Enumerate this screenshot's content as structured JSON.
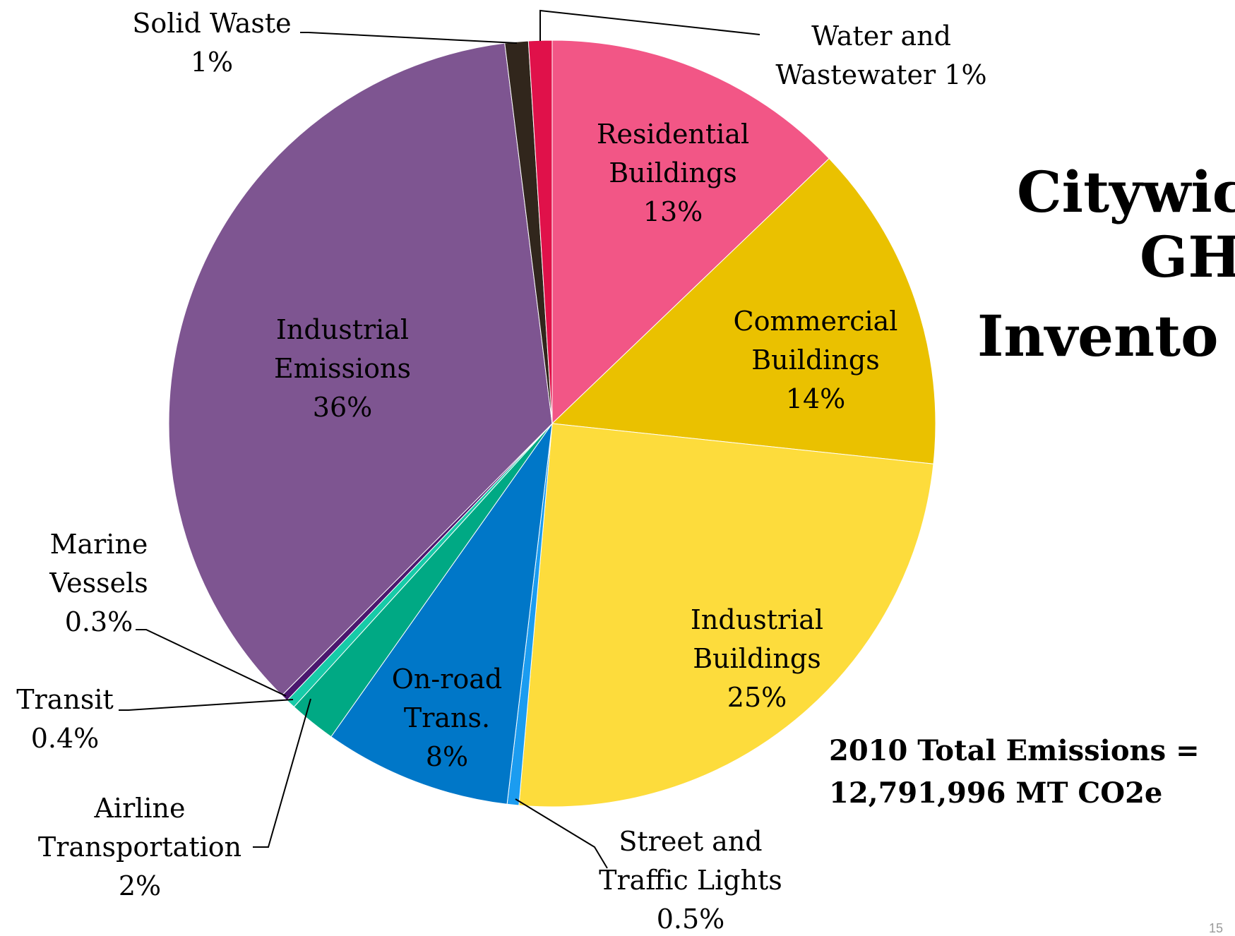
{
  "chart_data": {
    "type": "pie",
    "title_lines": [
      "Citywic",
      "GH",
      "Invento"
    ],
    "subtitle_lines": [
      "2010 Total Emissions =",
      "12,791,996 MT CO2e"
    ],
    "slices": [
      {
        "label_lines": [
          "Residential",
          "Buildings",
          "13%"
        ],
        "value": 13,
        "color": "#f25686"
      },
      {
        "label_lines": [
          "Commercial",
          "Buildings",
          "14%"
        ],
        "value": 14,
        "color": "#eac100"
      },
      {
        "label_lines": [
          "Industrial",
          "Buildings",
          "25%"
        ],
        "value": 25,
        "color": "#fddc3c"
      },
      {
        "label_lines": [
          "Street and",
          "Traffic Lights",
          "0.5%"
        ],
        "value": 0.5,
        "color": "#1b9cf0"
      },
      {
        "label_lines": [
          "On-road",
          "Trans.",
          "8%"
        ],
        "value": 8,
        "color": "#0077c8"
      },
      {
        "label_lines": [
          "Airline",
          "Transportation",
          "2%"
        ],
        "value": 2,
        "color": "#00a984"
      },
      {
        "label_lines": [
          "Transit",
          "0.4%"
        ],
        "value": 0.4,
        "color": "#17cba8"
      },
      {
        "label_lines": [
          "Marine",
          "Vessels",
          "0.3%"
        ],
        "value": 0.3,
        "color": "#4b176e"
      },
      {
        "label_lines": [
          "Industrial",
          "Emissions",
          "36%"
        ],
        "value": 36,
        "color": "#7e5591"
      },
      {
        "label_lines": [
          "Solid Waste",
          "1%"
        ],
        "value": 1,
        "color": "#31261c"
      },
      {
        "label_lines": [
          "Water and",
          "Wastewater  1%"
        ],
        "value": 1,
        "color": "#e0114a"
      }
    ],
    "legend": "none"
  },
  "page_number": "15"
}
